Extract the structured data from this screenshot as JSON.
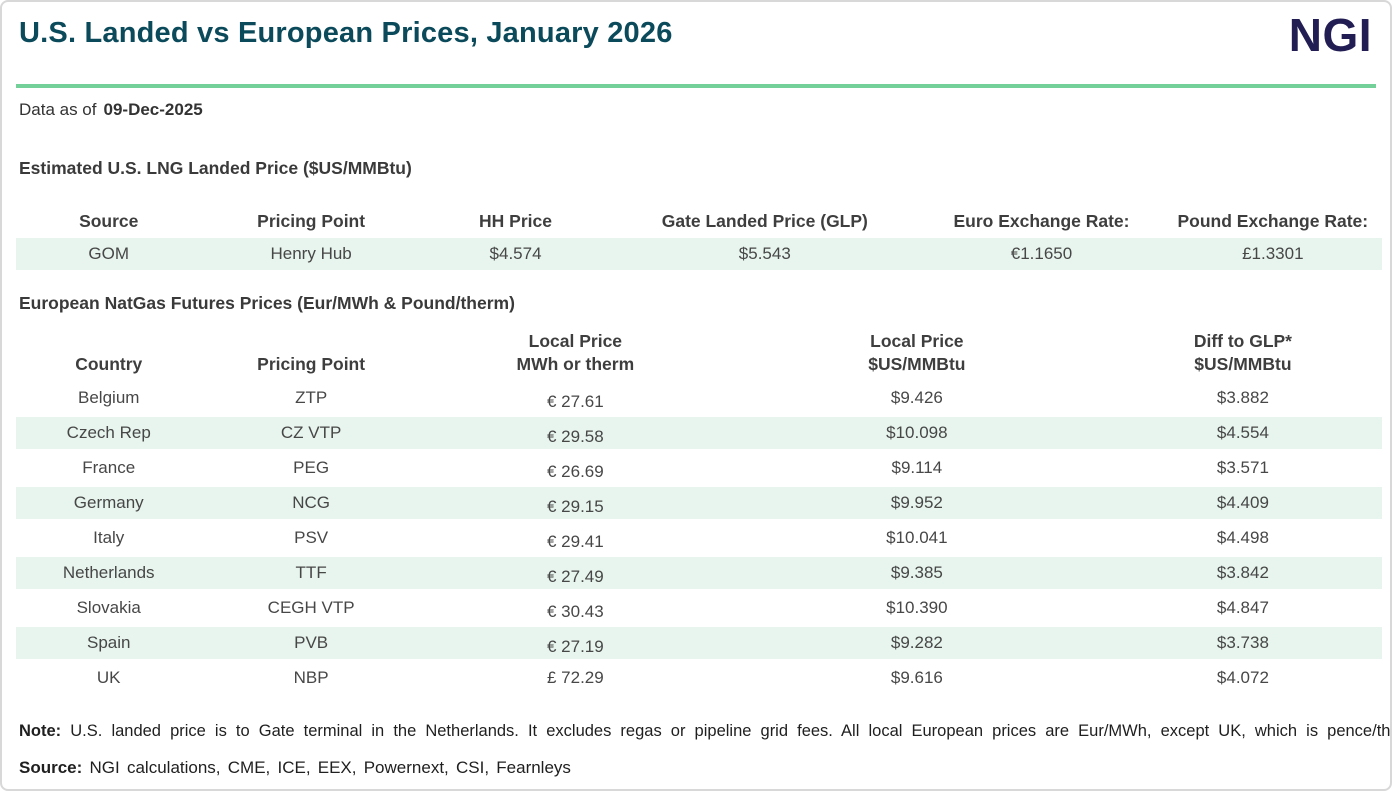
{
  "header": {
    "title": "U.S. Landed vs European Prices, January 2026",
    "logo_text": "NGI",
    "data_as_of_label": "Data as of",
    "data_as_of_date": "09-Dec-2025"
  },
  "colors": {
    "title_teal": "#0b4a5a",
    "logo_navy": "#221d52",
    "accent_green": "#74d099",
    "row_stripe_mint": "#e7f5ee"
  },
  "us_table": {
    "section_title": "Estimated U.S. LNG Landed Price ($US/MMBtu)",
    "columns": [
      "Source",
      "Pricing Point",
      "HH Price",
      "Gate Landed Price (GLP)",
      "Euro Exchange Rate:",
      "Pound Exchange Rate:"
    ],
    "row": {
      "source": "GOM",
      "pricing_point": "Henry Hub",
      "hh_price": "$4.574",
      "gate_landed_price": "$5.543",
      "euro_exchange_rate": "€1.1650",
      "pound_exchange_rate": "£1.3301"
    }
  },
  "eu_table": {
    "section_title": "European NatGas Futures Prices (Eur/MWh & Pound/therm)",
    "columns": [
      {
        "line1": "",
        "line2": "Country"
      },
      {
        "line1": "",
        "line2": "Pricing Point"
      },
      {
        "line1": "Local Price",
        "line2": "MWh or therm"
      },
      {
        "line1": "Local Price",
        "line2": "$US/MMBtu"
      },
      {
        "line1": "Diff to GLP*",
        "line2": "$US/MMBtu"
      }
    ],
    "rows": [
      {
        "country": "Belgium",
        "pricing_point": "ZTP",
        "local_price": "€ 27.61",
        "usd_price": "$9.426",
        "diff_to_glp": "$3.882"
      },
      {
        "country": "Czech Rep",
        "pricing_point": "CZ VTP",
        "local_price": "€ 29.58",
        "usd_price": "$10.098",
        "diff_to_glp": "$4.554"
      },
      {
        "country": "France",
        "pricing_point": "PEG",
        "local_price": "€ 26.69",
        "usd_price": "$9.114",
        "diff_to_glp": "$3.571"
      },
      {
        "country": "Germany",
        "pricing_point": "NCG",
        "local_price": "€ 29.15",
        "usd_price": "$9.952",
        "diff_to_glp": "$4.409"
      },
      {
        "country": "Italy",
        "pricing_point": "PSV",
        "local_price": "€ 29.41",
        "usd_price": "$10.041",
        "diff_to_glp": "$4.498"
      },
      {
        "country": "Netherlands",
        "pricing_point": "TTF",
        "local_price": "€ 27.49",
        "usd_price": "$9.385",
        "diff_to_glp": "$3.842"
      },
      {
        "country": "Slovakia",
        "pricing_point": "CEGH VTP",
        "local_price": "€ 30.43",
        "usd_price": "$10.390",
        "diff_to_glp": "$4.847"
      },
      {
        "country": "Spain",
        "pricing_point": "PVB",
        "local_price": "€ 27.19",
        "usd_price": "$9.282",
        "diff_to_glp": "$3.738"
      },
      {
        "country": "UK",
        "pricing_point": "NBP",
        "local_price": "£ 72.29",
        "usd_price": "$9.616",
        "diff_to_glp": "$4.072"
      }
    ]
  },
  "footer": {
    "note_label": "Note:",
    "note_text": "U.S. landed price is to Gate terminal in the Netherlands.  It excludes regas or pipeline grid fees. All local European prices are Eur/MWh, except UK, which is pence/therm.",
    "source_label": "Source:",
    "source_text": "NGI calculations, CME, ICE, EEX, Powernext, CSI, Fearnleys"
  },
  "chart_data": [
    {
      "type": "table",
      "title": "Estimated U.S. LNG Landed Price ($US/MMBtu)",
      "columns": [
        "Source",
        "Pricing Point",
        "HH Price",
        "Gate Landed Price (GLP)",
        "Euro Exchange Rate:",
        "Pound Exchange Rate:"
      ],
      "rows": [
        [
          "GOM",
          "Henry Hub",
          "$4.574",
          "$5.543",
          "€1.1650",
          "£1.3301"
        ]
      ]
    },
    {
      "type": "table",
      "title": "European NatGas Futures Prices (Eur/MWh & Pound/therm)",
      "columns": [
        "Country",
        "Pricing Point",
        "Local Price MWh or therm",
        "Local Price $US/MMBtu",
        "Diff to GLP* $US/MMBtu"
      ],
      "rows": [
        [
          "Belgium",
          "ZTP",
          27.61,
          9.426,
          3.882
        ],
        [
          "Czech Rep",
          "CZ VTP",
          29.58,
          10.098,
          4.554
        ],
        [
          "France",
          "PEG",
          26.69,
          9.114,
          3.571
        ],
        [
          "Germany",
          "NCG",
          29.15,
          9.952,
          4.409
        ],
        [
          "Italy",
          "PSV",
          29.41,
          10.041,
          4.498
        ],
        [
          "Netherlands",
          "TTF",
          27.49,
          9.385,
          3.842
        ],
        [
          "Slovakia",
          "CEGH VTP",
          30.43,
          10.39,
          4.847
        ],
        [
          "Spain",
          "PVB",
          27.19,
          9.282,
          3.738
        ],
        [
          "UK",
          "NBP",
          72.29,
          9.616,
          4.072
        ]
      ],
      "units_note": "All local European prices are Eur/MWh, except UK, which is pence/therm"
    }
  ]
}
